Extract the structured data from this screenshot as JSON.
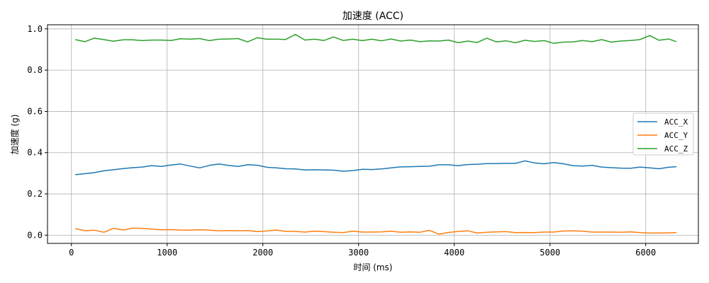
{
  "chart_data": {
    "type": "line",
    "title": "加速度 (ACC)",
    "xlabel": "时间 (ms)",
    "ylabel": "加速度 (g)",
    "xlim": [
      -250,
      6550
    ],
    "ylim": [
      -0.04,
      1.02
    ],
    "xticks": [
      0,
      1000,
      2000,
      3000,
      4000,
      5000,
      6000
    ],
    "yticks": [
      0.0,
      0.2,
      0.4,
      0.6,
      0.8,
      1.0
    ],
    "xtick_labels": [
      "0",
      "1000",
      "2000",
      "3000",
      "4000",
      "5000",
      "6000"
    ],
    "ytick_labels": [
      "0.0",
      "0.2",
      "0.4",
      "0.6",
      "0.8",
      "1.0"
    ],
    "grid": true,
    "legend_position": "right",
    "x": [
      40,
      140,
      240,
      340,
      440,
      540,
      640,
      740,
      840,
      940,
      1040,
      1140,
      1240,
      1340,
      1440,
      1540,
      1640,
      1740,
      1840,
      1940,
      2040,
      2140,
      2240,
      2340,
      2440,
      2540,
      2640,
      2740,
      2840,
      2940,
      3040,
      3140,
      3240,
      3340,
      3440,
      3540,
      3640,
      3740,
      3840,
      3940,
      4040,
      4140,
      4240,
      4340,
      4440,
      4540,
      4640,
      4740,
      4840,
      4940,
      5040,
      5140,
      5240,
      5340,
      5440,
      5540,
      5640,
      5740,
      5840,
      5940,
      6040,
      6140,
      6240,
      6320
    ],
    "series": [
      {
        "name": "ACC_X",
        "color": "#1f77b4",
        "values": [
          0.293,
          0.298,
          0.303,
          0.312,
          0.317,
          0.323,
          0.327,
          0.33,
          0.337,
          0.333,
          0.34,
          0.345,
          0.335,
          0.326,
          0.338,
          0.345,
          0.338,
          0.333,
          0.341,
          0.339,
          0.329,
          0.326,
          0.322,
          0.321,
          0.316,
          0.317,
          0.316,
          0.315,
          0.31,
          0.313,
          0.319,
          0.318,
          0.321,
          0.326,
          0.331,
          0.332,
          0.333,
          0.334,
          0.341,
          0.341,
          0.337,
          0.342,
          0.344,
          0.347,
          0.347,
          0.348,
          0.348,
          0.36,
          0.35,
          0.346,
          0.352,
          0.346,
          0.337,
          0.335,
          0.338,
          0.33,
          0.327,
          0.325,
          0.324,
          0.33,
          0.326,
          0.322,
          0.329,
          0.332
        ]
      },
      {
        "name": "ACC_Y",
        "color": "#ff7f0e",
        "values": [
          0.032,
          0.021,
          0.024,
          0.014,
          0.033,
          0.025,
          0.034,
          0.033,
          0.029,
          0.026,
          0.027,
          0.024,
          0.024,
          0.026,
          0.024,
          0.021,
          0.022,
          0.021,
          0.022,
          0.017,
          0.02,
          0.025,
          0.018,
          0.018,
          0.015,
          0.019,
          0.017,
          0.014,
          0.012,
          0.019,
          0.015,
          0.015,
          0.016,
          0.019,
          0.014,
          0.016,
          0.014,
          0.023,
          0.005,
          0.013,
          0.018,
          0.021,
          0.01,
          0.014,
          0.016,
          0.017,
          0.012,
          0.013,
          0.012,
          0.015,
          0.015,
          0.02,
          0.021,
          0.019,
          0.015,
          0.015,
          0.015,
          0.014,
          0.016,
          0.012,
          0.01,
          0.01,
          0.011,
          0.012
        ]
      },
      {
        "name": "ACC_Z",
        "color": "#2ca02c",
        "values": [
          0.948,
          0.938,
          0.955,
          0.948,
          0.94,
          0.947,
          0.947,
          0.943,
          0.946,
          0.946,
          0.944,
          0.952,
          0.95,
          0.953,
          0.943,
          0.95,
          0.951,
          0.953,
          0.937,
          0.957,
          0.95,
          0.95,
          0.949,
          0.973,
          0.946,
          0.95,
          0.944,
          0.961,
          0.944,
          0.95,
          0.943,
          0.95,
          0.942,
          0.951,
          0.941,
          0.946,
          0.938,
          0.942,
          0.941,
          0.946,
          0.933,
          0.941,
          0.934,
          0.955,
          0.937,
          0.942,
          0.933,
          0.945,
          0.939,
          0.943,
          0.93,
          0.936,
          0.937,
          0.944,
          0.938,
          0.948,
          0.936,
          0.941,
          0.944,
          0.948,
          0.968,
          0.945,
          0.951,
          0.938
        ]
      }
    ]
  }
}
